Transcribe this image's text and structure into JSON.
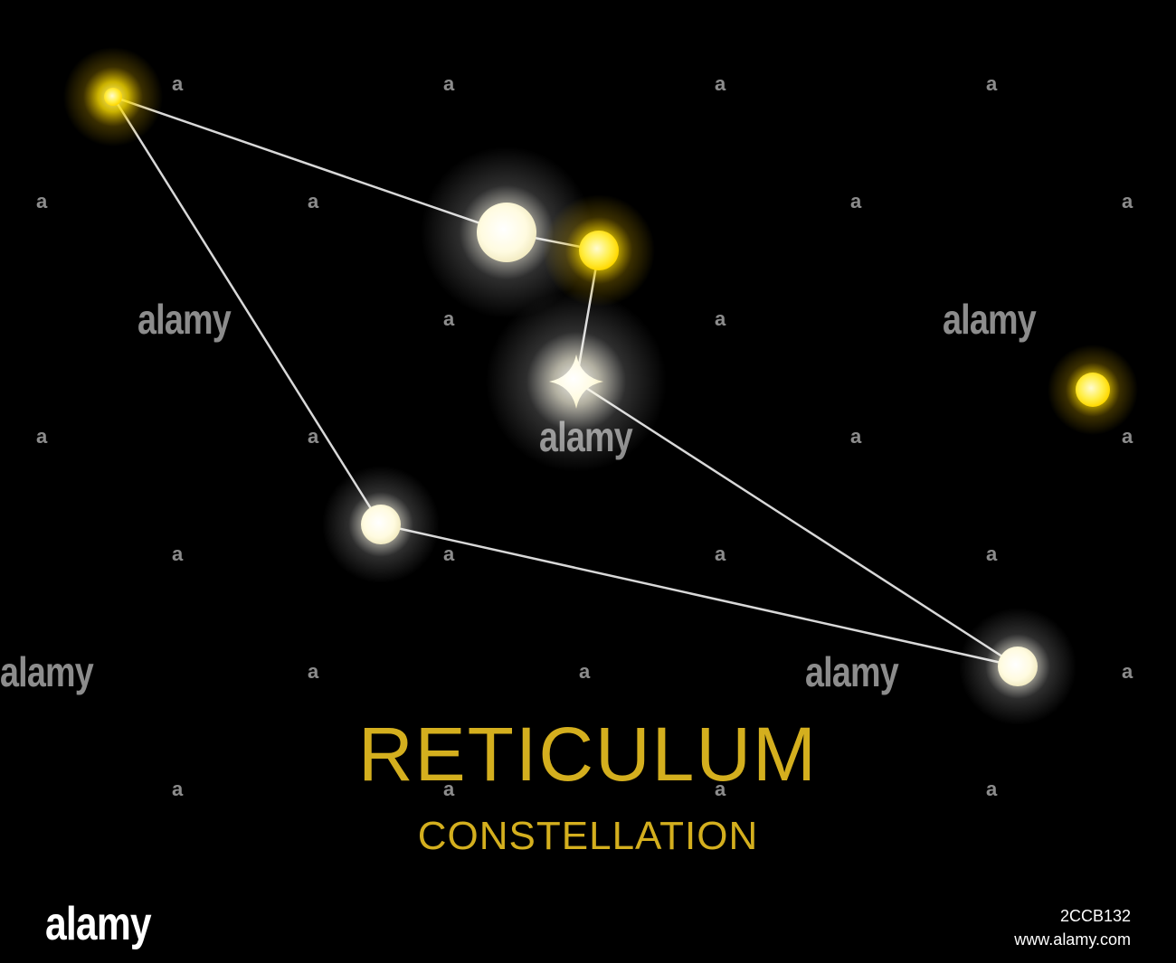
{
  "caption": {
    "title": "RETICULUM",
    "subtitle": "CONSTELLATION",
    "color": "#d4af1e"
  },
  "colors": {
    "background": "#000000",
    "star_white": "#fffbe6",
    "star_yellow": "#ffe000",
    "line": "#dddddd"
  },
  "watermark": {
    "word": "alamy",
    "mark": "a"
  },
  "footer": {
    "logo": "alamy",
    "image_id": "2CCB132",
    "url": "www.alamy.com"
  }
}
